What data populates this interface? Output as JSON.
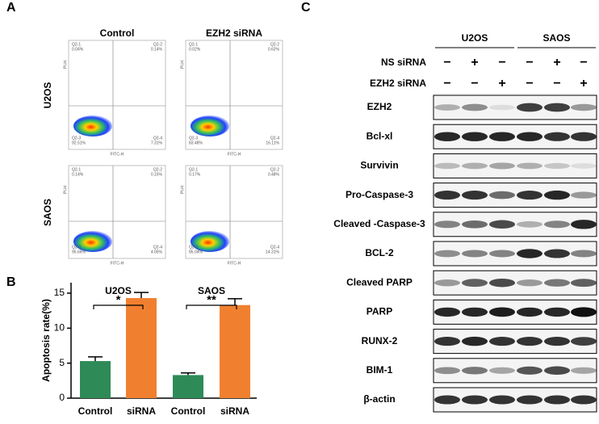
{
  "panel_a": {
    "label": "A",
    "columns": [
      "Control",
      "EZH2 siRNA"
    ],
    "rows": [
      "U2OS",
      "SAOS"
    ],
    "plots": [
      {
        "quadrants": [
          {
            "name": "Q2-1",
            "pct": "0.04%"
          },
          {
            "name": "Q2-2",
            "pct": "0.14%"
          },
          {
            "name": "Q2-3",
            "pct": "92.51%"
          },
          {
            "name": "Q2-4",
            "pct": "7.31%"
          }
        ]
      },
      {
        "quadrants": [
          {
            "name": "Q2-1",
            "pct": "0.02%"
          },
          {
            "name": "Q2-2",
            "pct": "0.62%"
          },
          {
            "name": "Q2-3",
            "pct": "83.48%"
          },
          {
            "name": "Q2-4",
            "pct": "16.11%"
          }
        ]
      },
      {
        "quadrants": [
          {
            "name": "Q2-1",
            "pct": "0.14%"
          },
          {
            "name": "Q2-2",
            "pct": "0.15%"
          },
          {
            "name": "Q2-3",
            "pct": "95.66%"
          },
          {
            "name": "Q2-4",
            "pct": "4.05%"
          }
        ]
      },
      {
        "quadrants": [
          {
            "name": "Q2-1",
            "pct": "0.17%"
          },
          {
            "name": "Q2-2",
            "pct": "0.48%"
          },
          {
            "name": "Q2-3",
            "pct": "85.04%"
          },
          {
            "name": "Q2-4",
            "pct": "14.31%"
          }
        ]
      }
    ],
    "x_label": "FITC-H",
    "y_label": "PI-H"
  },
  "chart_data": {
    "type": "bar",
    "panel_label": "B",
    "y_label": "Apoptosis rate(%)",
    "groups": [
      "U2OS",
      "SAOS"
    ],
    "significance": [
      "*",
      "**"
    ],
    "categories": [
      "Control",
      "siRNA",
      "Control",
      "siRNA"
    ],
    "values": [
      5.3,
      14.3,
      3.3,
      13.3
    ],
    "errors": [
      0.6,
      0.8,
      0.3,
      0.9
    ],
    "colors": [
      "#2e8b57",
      "#f08030",
      "#2e8b57",
      "#f08030"
    ],
    "ylim": [
      0,
      16.5
    ],
    "yticks": [
      0,
      5,
      10,
      15
    ]
  },
  "panel_c": {
    "label": "C",
    "groups": [
      "U2OS",
      "SAOS"
    ],
    "conditions": [
      {
        "name": "NS siRNA",
        "signs": [
          "−",
          "+",
          "−",
          "−",
          "+",
          "−"
        ]
      },
      {
        "name": "EZH2 siRNA",
        "signs": [
          "−",
          "−",
          "+",
          "−",
          "−",
          "+"
        ]
      }
    ],
    "proteins": [
      "EZH2",
      "Bcl-xl",
      "Survivin",
      "Pro-Caspase-3",
      "Cleaved -Caspase-3",
      "BCL-2",
      "Cleaved PARP",
      "PARP",
      "RUNX-2",
      "BIM-1",
      "β-actin"
    ]
  }
}
